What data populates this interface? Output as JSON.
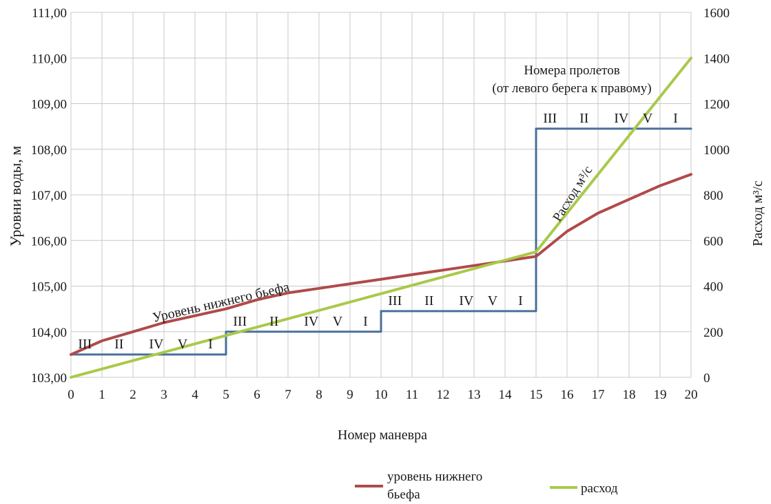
{
  "chart_data": {
    "type": "line",
    "xlabel": "Номер маневра",
    "ylabel_left": "Уровни воды, м",
    "ylabel_right": "Расход м³/с",
    "x_ticks": [
      "0",
      "1",
      "2",
      "3",
      "4",
      "5",
      "6",
      "7",
      "8",
      "9",
      "10",
      "11",
      "12",
      "13",
      "14",
      "15",
      "16",
      "17",
      "18",
      "19",
      "20"
    ],
    "y_left_ticks": [
      "103,00",
      "104,00",
      "105,00",
      "105,00",
      "106,00",
      "107,00",
      "108,00",
      "109,00",
      "110,00",
      "111,00"
    ],
    "y_right_ticks": [
      "0",
      "200",
      "400",
      "600",
      "800",
      "1000",
      "1200",
      "1400",
      "1600"
    ],
    "xlim": [
      0,
      20
    ],
    "ylim_left": [
      103,
      111
    ],
    "ylim_right": [
      0,
      1600
    ],
    "grid": true,
    "legend_position": "bottom",
    "series": [
      {
        "name": "уровень нижнего бьефа",
        "axis": "left",
        "color": "#b04a4a",
        "x": [
          0,
          1,
          2,
          3,
          4,
          5,
          6,
          7,
          8,
          9,
          10,
          11,
          12,
          13,
          14,
          15,
          16,
          17,
          18,
          19,
          20
        ],
        "y": [
          103.5,
          103.8,
          104.0,
          104.2,
          104.35,
          104.5,
          104.7,
          104.85,
          104.95,
          105.05,
          105.15,
          105.25,
          105.35,
          105.45,
          105.55,
          105.65,
          106.2,
          106.6,
          106.9,
          107.2,
          107.45
        ]
      },
      {
        "name": "расход",
        "axis": "right",
        "color": "#a9c94a",
        "x": [
          0,
          15,
          20
        ],
        "y": [
          0,
          550,
          1400
        ]
      },
      {
        "name": "",
        "axis": "left",
        "color": "#4a6f9a",
        "step": true,
        "x": [
          0,
          5,
          5,
          10,
          10,
          15,
          15,
          20
        ],
        "y": [
          103.5,
          103.5,
          104.0,
          104.0,
          104.45,
          104.45,
          108.45,
          108.45
        ]
      }
    ],
    "span_groups": [
      {
        "x_start": 0,
        "level": 103.5,
        "labels": [
          "III",
          "II",
          "IV",
          "V",
          "I"
        ]
      },
      {
        "x_start": 5,
        "level": 104.0,
        "labels": [
          "III",
          "II",
          "IV",
          "V",
          "I"
        ]
      },
      {
        "x_start": 10,
        "level": 104.45,
        "labels": [
          "III",
          "II",
          "IV",
          "V",
          "I"
        ]
      },
      {
        "x_start": 15,
        "level": 108.45,
        "labels": [
          "III",
          "II",
          "IV",
          "V",
          "I"
        ]
      }
    ],
    "annotations": {
      "spans_title_1": "Номера пролетов",
      "spans_title_2": "(от левого берега к правому)",
      "tailwater_label": "Уровень нижнего бьефа",
      "discharge_label": "Расход м³/с"
    }
  }
}
